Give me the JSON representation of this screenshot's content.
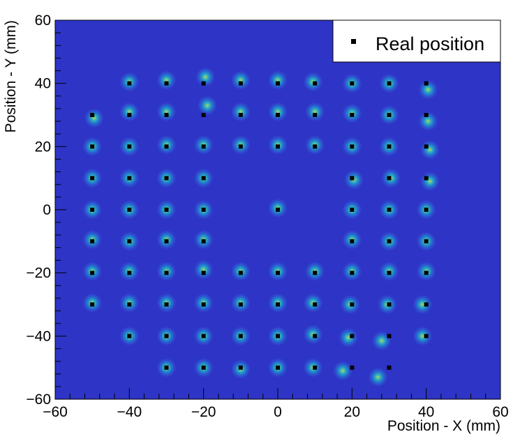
{
  "chart_data": {
    "type": "scatter",
    "xlabel": "Position - X (mm)",
    "ylabel": "Position - Y (mm)",
    "xlim": [
      -60,
      60
    ],
    "ylim": [
      -60,
      60
    ],
    "x_ticks": [
      -60,
      -40,
      -20,
      0,
      20,
      40,
      60
    ],
    "y_ticks": [
      -60,
      -40,
      -20,
      0,
      20,
      40,
      60
    ],
    "x_tick_labels": [
      "−60",
      "−40",
      "−20",
      "0",
      "20",
      "40",
      "60"
    ],
    "y_tick_labels": [
      "−60",
      "−40",
      "−20",
      "0",
      "20",
      "40",
      "60"
    ],
    "legend": {
      "position": "top-right",
      "entries": [
        "Real position"
      ]
    },
    "colors": {
      "background": "#2e34c6",
      "marker": "#000000",
      "cluster_outer": "#2f6fd8",
      "cluster_mid": "#1aa0d0",
      "cluster_core": "#4fc7a8",
      "cluster_peak": "#c8d84a"
    },
    "series": [
      {
        "name": "Real position",
        "marker": "square",
        "points": [
          [
            -40,
            40
          ],
          [
            -30,
            40
          ],
          [
            -20,
            40
          ],
          [
            -10,
            40
          ],
          [
            0,
            40
          ],
          [
            10,
            40
          ],
          [
            20,
            40
          ],
          [
            30,
            40
          ],
          [
            40,
            40
          ],
          [
            -50,
            30
          ],
          [
            -40,
            30
          ],
          [
            -30,
            30
          ],
          [
            -20,
            30
          ],
          [
            -10,
            30
          ],
          [
            0,
            30
          ],
          [
            10,
            30
          ],
          [
            20,
            30
          ],
          [
            30,
            30
          ],
          [
            40,
            30
          ],
          [
            -50,
            20
          ],
          [
            -40,
            20
          ],
          [
            -30,
            20
          ],
          [
            -20,
            20
          ],
          [
            -10,
            20
          ],
          [
            0,
            20
          ],
          [
            10,
            20
          ],
          [
            20,
            20
          ],
          [
            30,
            20
          ],
          [
            40,
            20
          ],
          [
            -50,
            10
          ],
          [
            -40,
            10
          ],
          [
            -30,
            10
          ],
          [
            -20,
            10
          ],
          [
            20,
            10
          ],
          [
            30,
            10
          ],
          [
            40,
            10
          ],
          [
            -50,
            0
          ],
          [
            -40,
            0
          ],
          [
            -30,
            0
          ],
          [
            -20,
            0
          ],
          [
            0,
            0
          ],
          [
            20,
            0
          ],
          [
            30,
            0
          ],
          [
            40,
            0
          ],
          [
            -50,
            -10
          ],
          [
            -40,
            -10
          ],
          [
            -30,
            -10
          ],
          [
            -20,
            -10
          ],
          [
            20,
            -10
          ],
          [
            30,
            -10
          ],
          [
            40,
            -10
          ],
          [
            -50,
            -20
          ],
          [
            -40,
            -20
          ],
          [
            -30,
            -20
          ],
          [
            -20,
            -20
          ],
          [
            -10,
            -20
          ],
          [
            0,
            -20
          ],
          [
            10,
            -20
          ],
          [
            20,
            -20
          ],
          [
            30,
            -20
          ],
          [
            40,
            -20
          ],
          [
            -50,
            -30
          ],
          [
            -40,
            -30
          ],
          [
            -30,
            -30
          ],
          [
            -20,
            -30
          ],
          [
            -10,
            -30
          ],
          [
            0,
            -30
          ],
          [
            10,
            -30
          ],
          [
            20,
            -30
          ],
          [
            30,
            -30
          ],
          [
            40,
            -30
          ],
          [
            -40,
            -40
          ],
          [
            -30,
            -40
          ],
          [
            -20,
            -40
          ],
          [
            -10,
            -40
          ],
          [
            0,
            -40
          ],
          [
            10,
            -40
          ],
          [
            20,
            -40
          ],
          [
            30,
            -40
          ],
          [
            40,
            -40
          ],
          [
            -30,
            -50
          ],
          [
            -20,
            -50
          ],
          [
            -10,
            -50
          ],
          [
            0,
            -50
          ],
          [
            10,
            -50
          ],
          [
            20,
            -50
          ],
          [
            30,
            -50
          ]
        ]
      },
      {
        "name": "",
        "marker": "density",
        "points": [
          [
            -40,
            40.5
          ],
          [
            -30,
            41
          ],
          [
            -19.5,
            42
          ],
          [
            -10,
            41
          ],
          [
            0,
            41
          ],
          [
            9.5,
            40.5
          ],
          [
            20,
            40
          ],
          [
            30,
            40
          ],
          [
            40.5,
            38
          ],
          [
            -49.5,
            29
          ],
          [
            -40,
            31
          ],
          [
            -30,
            31
          ],
          [
            -19,
            33
          ],
          [
            -10,
            31
          ],
          [
            0,
            31
          ],
          [
            10,
            31
          ],
          [
            20,
            30.5
          ],
          [
            30,
            30
          ],
          [
            40.5,
            28
          ],
          [
            -50,
            20
          ],
          [
            -40,
            20
          ],
          [
            -30,
            20.5
          ],
          [
            -20,
            20.5
          ],
          [
            -10,
            20.5
          ],
          [
            0,
            20.5
          ],
          [
            10,
            20.5
          ],
          [
            20,
            20
          ],
          [
            30,
            20
          ],
          [
            41,
            19
          ],
          [
            -50,
            10
          ],
          [
            -40,
            10
          ],
          [
            -30,
            10
          ],
          [
            -20,
            10
          ],
          [
            20.5,
            9.5
          ],
          [
            30.5,
            10
          ],
          [
            41,
            9
          ],
          [
            -50,
            0
          ],
          [
            -40,
            0
          ],
          [
            -30,
            0
          ],
          [
            -20,
            0
          ],
          [
            0,
            0.5
          ],
          [
            20,
            0
          ],
          [
            30,
            0
          ],
          [
            40,
            0
          ],
          [
            -50,
            -9.5
          ],
          [
            -40,
            -10
          ],
          [
            -30,
            -9.5
          ],
          [
            -20,
            -9.5
          ],
          [
            20,
            -9.5
          ],
          [
            30,
            -10
          ],
          [
            40,
            -10
          ],
          [
            -50,
            -19.5
          ],
          [
            -40,
            -19.5
          ],
          [
            -30,
            -19.5
          ],
          [
            -20,
            -19
          ],
          [
            -10,
            -19.5
          ],
          [
            0,
            -19.5
          ],
          [
            10,
            -19.5
          ],
          [
            20,
            -19.5
          ],
          [
            30,
            -19.5
          ],
          [
            40,
            -19.5
          ],
          [
            -50,
            -29.5
          ],
          [
            -40,
            -29.5
          ],
          [
            -30,
            -29.5
          ],
          [
            -20,
            -29.5
          ],
          [
            -10,
            -29.5
          ],
          [
            0,
            -29.5
          ],
          [
            9.5,
            -29.5
          ],
          [
            19.5,
            -30
          ],
          [
            29.5,
            -30
          ],
          [
            39,
            -30
          ],
          [
            -40,
            -40
          ],
          [
            -30,
            -40
          ],
          [
            -20,
            -40
          ],
          [
            -10,
            -40
          ],
          [
            0,
            -40
          ],
          [
            9.5,
            -39.5
          ],
          [
            19,
            -40.5
          ],
          [
            28,
            -41.5
          ],
          [
            39,
            -40
          ],
          [
            -30,
            -50
          ],
          [
            -20,
            -50
          ],
          [
            -10,
            -50.5
          ],
          [
            0,
            -50
          ],
          [
            9.5,
            -50
          ],
          [
            17.5,
            -51
          ],
          [
            27,
            -53
          ]
        ]
      }
    ]
  }
}
